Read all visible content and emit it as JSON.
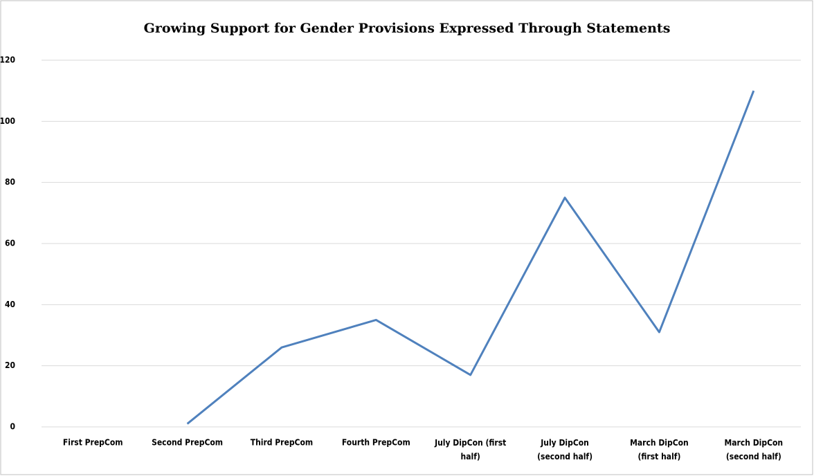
{
  "chart_data": {
    "type": "line",
    "title": "Growing Support for Gender Provisions Expressed Through Statements",
    "categories": [
      "First PrepCom",
      "Second PrepCom",
      "Third PrepCom",
      "Fourth PrepCom",
      "July DipCon (first half)",
      "July DipCon (second half)",
      "March DipCon (first half)",
      "March DipCon (second half)"
    ],
    "values": [
      null,
      1,
      26,
      35,
      17,
      75,
      31,
      110
    ],
    "color": "#4f81bd",
    "ylim": [
      0,
      120
    ],
    "yticks": [
      0,
      20,
      40,
      60,
      80,
      100,
      120
    ],
    "grid": true
  }
}
